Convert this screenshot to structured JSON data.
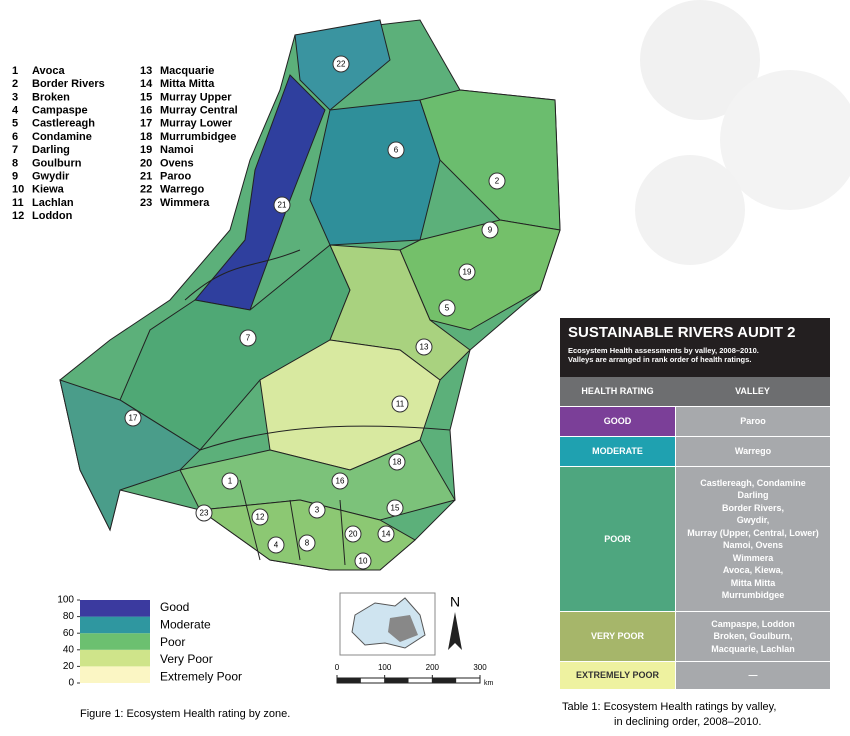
{
  "zones": [
    {
      "number": 1,
      "name": "Avoca"
    },
    {
      "number": 2,
      "name": "Border Rivers"
    },
    {
      "number": 3,
      "name": "Broken"
    },
    {
      "number": 4,
      "name": "Campaspe"
    },
    {
      "number": 5,
      "name": "Castlereagh"
    },
    {
      "number": 6,
      "name": "Condamine"
    },
    {
      "number": 7,
      "name": "Darling"
    },
    {
      "number": 8,
      "name": "Goulburn"
    },
    {
      "number": 9,
      "name": "Gwydir"
    },
    {
      "number": 10,
      "name": "Kiewa"
    },
    {
      "number": 11,
      "name": "Lachlan"
    },
    {
      "number": 12,
      "name": "Loddon"
    },
    {
      "number": 13,
      "name": "Macquarie"
    },
    {
      "number": 14,
      "name": "Mitta Mitta"
    },
    {
      "number": 15,
      "name": "Murray Upper"
    },
    {
      "number": 16,
      "name": "Murray Central"
    },
    {
      "number": 17,
      "name": "Murray Lower"
    },
    {
      "number": 18,
      "name": "Murrumbidgee"
    },
    {
      "number": 19,
      "name": "Namoi"
    },
    {
      "number": 20,
      "name": "Ovens"
    },
    {
      "number": 21,
      "name": "Paroo"
    },
    {
      "number": 22,
      "name": "Warrego"
    },
    {
      "number": 23,
      "name": "Wimmera"
    }
  ],
  "legend": {
    "ticks": [
      100,
      80,
      60,
      40,
      20,
      0
    ],
    "labels": [
      "Good",
      "Moderate",
      "Poor",
      "Very Poor",
      "Extremely Poor"
    ]
  },
  "inset": {
    "north": "N",
    "scale_ticks": [
      0,
      100,
      200,
      300
    ],
    "scale_unit": "km"
  },
  "figure_caption": "Figure 1: Ecosystem Health rating by zone.",
  "table": {
    "title": "SUSTAINABLE RIVERS AUDIT 2",
    "subtitle": [
      "Ecosystem Health assessments by valley, 2008–2010.",
      "Valleys are arranged in rank order of health ratings."
    ],
    "headers": [
      "HEALTH RATING",
      "VALLEY"
    ],
    "rows": [
      {
        "rating": "GOOD",
        "valleys": [
          "Paroo"
        ]
      },
      {
        "rating": "MODERATE",
        "valleys": [
          "Warrego"
        ]
      },
      {
        "rating": "POOR",
        "valleys": [
          "Castlereagh, Condamine",
          "Darling",
          "Border Rivers,",
          "Gwydir,",
          "Murray (Upper, Central, Lower)",
          "Namoi, Ovens",
          "Wimmera",
          "Avoca, Kiewa,",
          "Mitta Mitta",
          "Murrumbidgee"
        ]
      },
      {
        "rating": "VERY POOR",
        "valleys": [
          "Campaspe, Loddon",
          "Broken, Goulburn,",
          "Macquarie, Lachlan"
        ]
      },
      {
        "rating": "EXTREMELY POOR",
        "valleys": [
          "—"
        ]
      }
    ],
    "caption": [
      "Table 1: Ecosystem Health ratings by valley,",
      "in declining order, 2008–2010."
    ]
  }
}
